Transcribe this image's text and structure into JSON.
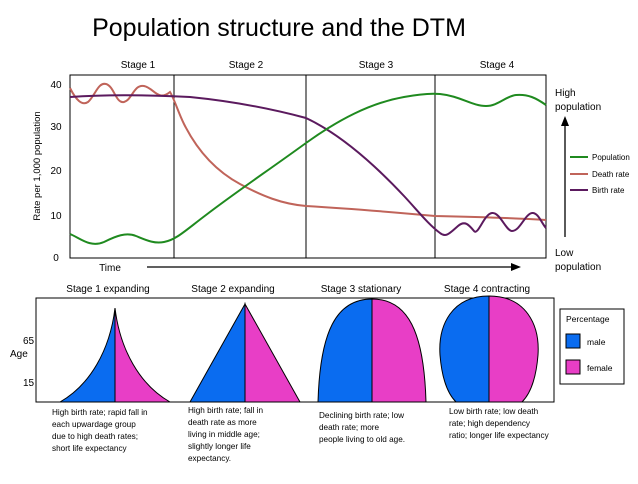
{
  "title": "Population structure and the DTM",
  "stages": [
    "Stage 1",
    "Stage 2",
    "Stage 3",
    "Stage 4"
  ],
  "chart": {
    "y_axis_label": "Rate per 1,000 population",
    "y_ticks": [
      "0",
      "10",
      "20",
      "30",
      "40"
    ],
    "time_label": "Time",
    "high_label_1": "High",
    "high_label_2": "population",
    "low_label_1": "Low",
    "low_label_2": "population"
  },
  "legend": {
    "population": "Population",
    "death_rate": "Death rate",
    "birth_rate": "Birth rate"
  },
  "colors": {
    "population": "#1f8a1f",
    "death_rate": "#c0645a",
    "birth_rate": "#5b1a5e",
    "male": "#0a6cf0",
    "female": "#e83ec6"
  },
  "pyramids": {
    "headings": [
      "Stage 1 expanding",
      "Stage 2 expanding",
      "Stage 3 stationary",
      "Stage 4 contracting"
    ],
    "age_label": "Age",
    "age_ticks": [
      "65",
      "15"
    ],
    "descriptions": [
      [
        "High birth rate; rapid fall in",
        "each upwardage group",
        "due to high death rates;",
        "short life expectancy"
      ],
      [
        "High birth rate; fall in",
        "death rate as more",
        "living in middle age;",
        "slightly longer life",
        "expectancy."
      ],
      [
        "Declining birth rate; low",
        "death rate; more",
        "people living to old age."
      ],
      [
        "Low birth rate; low death",
        "rate; high dependency",
        "ratio; longer life expectancy"
      ]
    ]
  },
  "percentage_legend": {
    "title": "Percentage",
    "male": "male",
    "female": "female"
  }
}
